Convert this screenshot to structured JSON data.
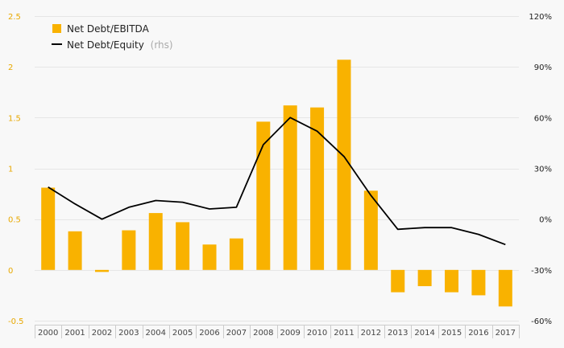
{
  "chart_data": {
    "type": "bar",
    "title": "",
    "categories": [
      "2000",
      "2001",
      "2002",
      "2003",
      "2004",
      "2005",
      "2006",
      "2007",
      "2008",
      "2009",
      "2010",
      "2011",
      "2012",
      "2013",
      "2014",
      "2015",
      "2016",
      "2017"
    ],
    "series": [
      {
        "name": "Net Debt/EBITDA",
        "type": "bar",
        "axis": "left",
        "values": [
          0.81,
          0.38,
          -0.02,
          0.39,
          0.56,
          0.47,
          0.25,
          0.31,
          1.46,
          1.62,
          1.6,
          2.07,
          0.78,
          -0.22,
          -0.16,
          -0.22,
          -0.25,
          -0.36
        ]
      },
      {
        "name": "Net Debt/Equity",
        "name_suffix": "(rhs)",
        "type": "line",
        "axis": "right",
        "values": [
          19,
          9,
          0,
          7,
          11,
          10,
          6,
          7,
          44,
          60,
          52,
          37,
          14,
          -6,
          -5,
          -5,
          -9,
          -15
        ]
      }
    ],
    "y_left": {
      "range": [
        -0.5,
        2.5
      ],
      "ticks": [
        -0.5,
        0,
        0.5,
        1,
        1.5,
        2,
        2.5
      ],
      "tick_labels": [
        "-0.5",
        "0",
        "0.5",
        "1",
        "1.5",
        "2",
        "2.5"
      ]
    },
    "y_right": {
      "range": [
        -60,
        120
      ],
      "ticks": [
        -60,
        -30,
        0,
        30,
        60,
        90,
        120
      ],
      "tick_labels": [
        "-60%",
        "-30%",
        "0%",
        "30%",
        "60%",
        "90%",
        "120%"
      ]
    },
    "grid": true,
    "legend": "top-left",
    "colors": {
      "bar": "#f9b200",
      "line": "#000000",
      "grid": "#e6e6e6",
      "left_axis_text": "#e8a800",
      "right_axis_text": "#222222",
      "background": "#f8f8f8"
    }
  }
}
